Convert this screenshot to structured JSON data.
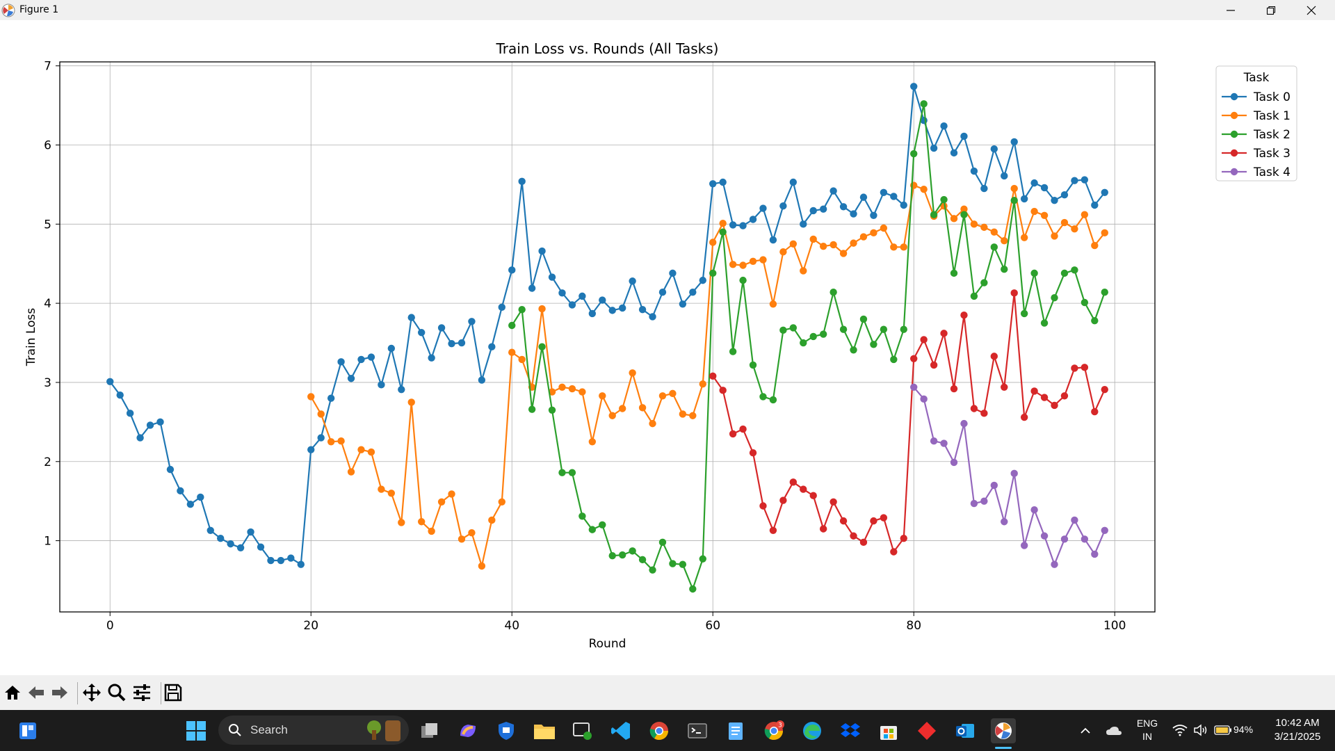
{
  "window": {
    "title": "Figure 1"
  },
  "taskbar": {
    "search_placeholder": "Search",
    "language": "ENG",
    "region": "IN",
    "battery": "94%",
    "time": "10:42 AM",
    "date": "3/21/2025",
    "chrome_badge": "3"
  },
  "colors": {
    "task0": "#1f77b4",
    "task1": "#ff7f0e",
    "task2": "#2ca02c",
    "task3": "#d62728",
    "task4": "#9467bd"
  },
  "chart_data": {
    "type": "line",
    "title": "Train Loss vs. Rounds (All Tasks)",
    "xlabel": "Round",
    "ylabel": "Train Loss",
    "xlim": [
      -5,
      104
    ],
    "ylim": [
      0.1,
      7.05
    ],
    "xticks": [
      0,
      20,
      40,
      60,
      80,
      100
    ],
    "yticks": [
      1,
      2,
      3,
      4,
      5,
      6,
      7
    ],
    "grid": true,
    "legend": {
      "title": "Task",
      "placement": "outside top-right"
    },
    "series": [
      {
        "name": "Task 0",
        "color": "#1f77b4",
        "x_start": 0,
        "values": [
          3.01,
          2.84,
          2.61,
          2.3,
          2.46,
          2.5,
          1.9,
          1.63,
          1.46,
          1.55,
          1.13,
          1.03,
          0.96,
          0.91,
          1.11,
          0.92,
          0.75,
          0.75,
          0.78,
          0.7,
          2.15,
          2.3,
          2.8,
          3.26,
          3.05,
          3.29,
          3.32,
          2.97,
          3.43,
          2.91,
          3.82,
          3.63,
          3.31,
          3.69,
          3.49,
          3.5,
          3.77,
          3.03,
          3.45,
          3.95,
          4.42,
          5.54,
          4.19,
          4.66,
          4.33,
          4.13,
          3.98,
          4.09,
          3.87,
          4.04,
          3.91,
          3.94,
          4.28,
          3.92,
          3.83,
          4.14,
          4.38,
          3.99,
          4.14,
          4.29,
          5.51,
          5.53,
          4.99,
          4.98,
          5.06,
          5.2,
          4.8,
          5.23,
          5.53,
          5.0,
          5.17,
          5.19,
          5.42,
          5.22,
          5.13,
          5.34,
          5.11,
          5.4,
          5.35,
          5.24,
          6.74,
          6.31,
          5.96,
          6.24,
          5.9,
          6.11,
          5.67,
          5.45,
          5.95,
          5.61,
          6.04,
          5.32,
          5.52,
          5.46,
          5.3,
          5.37,
          5.55,
          5.56,
          5.24,
          5.4
        ]
      },
      {
        "name": "Task 1",
        "color": "#ff7f0e",
        "x_start": 20,
        "values": [
          2.82,
          2.6,
          2.25,
          2.26,
          1.87,
          2.15,
          2.12,
          1.65,
          1.6,
          1.23,
          2.75,
          1.24,
          1.12,
          1.49,
          1.59,
          1.02,
          1.1,
          0.68,
          1.26,
          1.49,
          3.38,
          3.29,
          2.94,
          3.93,
          2.88,
          2.94,
          2.92,
          2.88,
          2.25,
          2.83,
          2.58,
          2.67,
          3.12,
          2.68,
          2.48,
          2.83,
          2.86,
          2.6,
          2.58,
          2.98,
          4.77,
          5.01,
          4.49,
          4.48,
          4.53,
          4.55,
          3.99,
          4.65,
          4.75,
          4.41,
          4.81,
          4.72,
          4.74,
          4.63,
          4.76,
          4.84,
          4.89,
          4.95,
          4.71,
          4.71,
          5.49,
          5.44,
          5.1,
          5.23,
          5.07,
          5.19,
          5.0,
          4.96,
          4.9,
          4.79,
          5.45,
          4.83,
          5.16,
          5.11,
          4.85,
          5.02,
          4.94,
          5.12,
          4.73,
          4.89
        ]
      },
      {
        "name": "Task 2",
        "color": "#2ca02c",
        "x_start": 40,
        "values": [
          3.72,
          3.92,
          2.66,
          3.45,
          2.65,
          1.86,
          1.86,
          1.31,
          1.14,
          1.2,
          0.81,
          0.82,
          0.87,
          0.76,
          0.63,
          0.98,
          0.71,
          0.7,
          0.39,
          0.77,
          4.38,
          4.9,
          3.39,
          4.29,
          3.22,
          2.82,
          2.78,
          3.66,
          3.69,
          3.5,
          3.58,
          3.61,
          4.14,
          3.67,
          3.41,
          3.8,
          3.48,
          3.67,
          3.29,
          3.67,
          5.89,
          6.52,
          5.12,
          5.31,
          4.38,
          5.12,
          4.09,
          4.26,
          4.71,
          4.43,
          5.3,
          3.87,
          4.38,
          3.75,
          4.07,
          4.38,
          4.42,
          4.01,
          3.78,
          4.14
        ]
      },
      {
        "name": "Task 3",
        "color": "#d62728",
        "x_start": 60,
        "values": [
          3.08,
          2.9,
          2.35,
          2.41,
          2.11,
          1.44,
          1.13,
          1.51,
          1.74,
          1.65,
          1.57,
          1.15,
          1.49,
          1.25,
          1.06,
          0.98,
          1.25,
          1.29,
          0.86,
          1.03,
          3.3,
          3.54,
          3.22,
          3.62,
          2.92,
          3.85,
          2.67,
          2.61,
          3.33,
          2.94,
          4.13,
          2.56,
          2.89,
          2.81,
          2.71,
          2.83,
          3.18,
          3.19,
          2.63,
          2.91
        ]
      },
      {
        "name": "Task 4",
        "color": "#9467bd",
        "x_start": 80,
        "values": [
          2.94,
          2.79,
          2.26,
          2.23,
          1.99,
          2.48,
          1.47,
          1.5,
          1.7,
          1.24,
          1.85,
          0.94,
          1.39,
          1.06,
          0.7,
          1.02,
          1.26,
          1.02,
          0.83,
          1.13
        ]
      }
    ]
  }
}
